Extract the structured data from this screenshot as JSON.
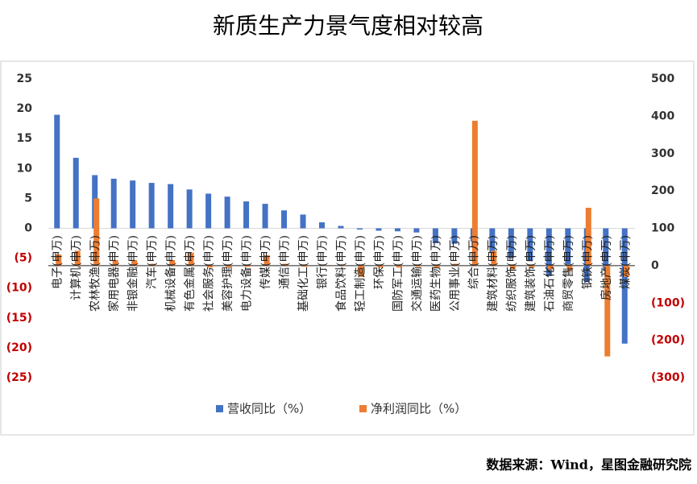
{
  "chart_data": {
    "type": "bar",
    "title": "新质生产力景气度相对较高",
    "source": "数据来源：Wind，星图金融研究院",
    "categories": [
      "电子(申万)",
      "计算机(申万)",
      "农林牧渔(申万)",
      "家用电器(申万)",
      "非银金融(申万)",
      "汽车(申万)",
      "机械设备(申万)",
      "有色金属(申万)",
      "社会服务(申万)",
      "美容护理(申万)",
      "电力设备(申万)",
      "传媒(申万)",
      "通信(申万)",
      "基础化工(申万)",
      "银行(申万)",
      "食品饮料(申万)",
      "轻工制造(申万)",
      "环保(申万)",
      "国防军工(申万)",
      "交通运输(申万)",
      "医药生物(申万)",
      "公用事业(申万)",
      "综合(申万)",
      "建筑材料(申万)",
      "纺织服饰(申万)",
      "建筑装饰(申万)",
      "石油石化(申万)",
      "商贸零售(申万)",
      "钢铁(申万)",
      "房地产(申万)",
      "煤炭(申万)"
    ],
    "series": [
      {
        "name": "营收同比（%）",
        "color": "#4472c4",
        "values": [
          19,
          11.8,
          8.9,
          8.3,
          8.0,
          7.6,
          7.4,
          6.5,
          5.8,
          5.3,
          4.5,
          4.1,
          3.0,
          2.3,
          1.0,
          0.4,
          -0.2,
          -0.4,
          -0.5,
          -0.7,
          -2.5,
          -2.6,
          -2.2,
          -4,
          -5,
          -5.5,
          -8,
          -6,
          -9,
          -7,
          -19.3
        ]
      },
      {
        "name": "净利润同比（%）",
        "color": "#ed7d31",
        "axis": "y2",
        "values": [
          30,
          40,
          180,
          15,
          15,
          5,
          15,
          35,
          -5,
          -5,
          -3,
          28,
          5,
          -3,
          2,
          2,
          -30,
          -5,
          -5,
          -3,
          -5,
          5,
          388,
          40,
          -10,
          -5,
          -10,
          -15,
          155,
          -243,
          -30
        ]
      }
    ],
    "ylim": [
      -25,
      25
    ],
    "yticks": [
      25,
      20,
      15,
      10,
      5,
      0,
      {
        "value": -5,
        "label": "(5)"
      },
      {
        "value": -10,
        "label": "(10)"
      },
      {
        "value": -15,
        "label": "(15)"
      },
      {
        "value": -20,
        "label": "(20)"
      },
      {
        "value": -25,
        "label": "(25)"
      }
    ],
    "y2lim": [
      -300,
      500
    ],
    "y2ticks": [
      500,
      400,
      300,
      200,
      100,
      0,
      {
        "value": -100,
        "label": "(100)"
      },
      {
        "value": -200,
        "label": "(200)"
      },
      {
        "value": -300,
        "label": "(300)"
      }
    ]
  }
}
